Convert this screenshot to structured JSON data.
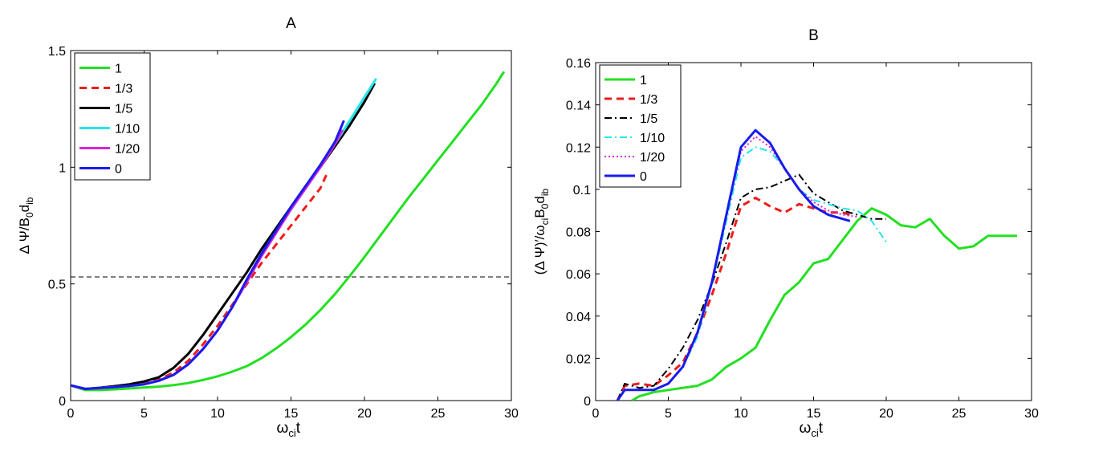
{
  "chart_data": [
    {
      "type": "line",
      "title": "A",
      "xlabel_main": "ω",
      "xlabel_sub": "ci",
      "xlabel_tail": "t",
      "ylabel_text": "Δ Ψ/B",
      "ylabel_sub1": "0",
      "ylabel_mid": "d",
      "ylabel_sub2": "ib",
      "xlim": [
        0,
        30
      ],
      "ylim": [
        0,
        1.5
      ],
      "xticks": [
        0,
        5,
        10,
        15,
        20,
        25,
        30
      ],
      "xtick_labels": [
        "0",
        "5",
        "10",
        "15",
        "20",
        "25",
        "30"
      ],
      "yticks": [
        0,
        0.5,
        1,
        1.5
      ],
      "ytick_labels": [
        "0",
        "0.5",
        "1",
        "1.5"
      ],
      "hline": 0.53,
      "legend_position": "top-left",
      "series": [
        {
          "name": "1",
          "color": "#22e022",
          "dash": "solid",
          "width": 3,
          "x": [
            0,
            1,
            2,
            3,
            4,
            5,
            6,
            7,
            8,
            9,
            10,
            11,
            12,
            13,
            14,
            15,
            16,
            17,
            18,
            19,
            20,
            21,
            22,
            23,
            24,
            25,
            26,
            27,
            28,
            29,
            29.5
          ],
          "y": [
            0.065,
            0.045,
            0.045,
            0.048,
            0.052,
            0.056,
            0.06,
            0.066,
            0.075,
            0.088,
            0.104,
            0.124,
            0.148,
            0.182,
            0.224,
            0.272,
            0.326,
            0.388,
            0.457,
            0.534,
            0.615,
            0.7,
            0.785,
            0.87,
            0.95,
            1.03,
            1.11,
            1.19,
            1.27,
            1.36,
            1.41
          ]
        },
        {
          "name": "1/3",
          "color": "#ee1c1c",
          "dash": "dash",
          "width": 3,
          "x": [
            0,
            1,
            2,
            3,
            4,
            5,
            6,
            7,
            8,
            9,
            10,
            11,
            12,
            13,
            14,
            15,
            16,
            17,
            17.5
          ],
          "y": [
            0.065,
            0.05,
            0.053,
            0.058,
            0.064,
            0.072,
            0.09,
            0.12,
            0.17,
            0.24,
            0.32,
            0.41,
            0.5,
            0.59,
            0.67,
            0.75,
            0.83,
            0.91,
            0.98
          ]
        },
        {
          "name": "1/5",
          "color": "#000000",
          "dash": "solid",
          "width": 3,
          "x": [
            0,
            1,
            2,
            3,
            4,
            5,
            6,
            7,
            8,
            9,
            10,
            11,
            12,
            13,
            14,
            15,
            16,
            17,
            18,
            19,
            20,
            20.7
          ],
          "y": [
            0.065,
            0.05,
            0.055,
            0.062,
            0.07,
            0.082,
            0.1,
            0.14,
            0.2,
            0.28,
            0.37,
            0.46,
            0.55,
            0.65,
            0.74,
            0.83,
            0.92,
            1.0,
            1.09,
            1.18,
            1.28,
            1.36
          ]
        },
        {
          "name": "1/10",
          "color": "#22e6ee",
          "dash": "solid",
          "width": 3,
          "x": [
            0,
            1,
            2,
            3,
            4,
            5,
            6,
            7,
            8,
            9,
            10,
            11,
            12,
            13,
            14,
            15,
            16,
            17,
            18,
            19,
            20,
            20.8
          ],
          "y": [
            0.065,
            0.05,
            0.054,
            0.058,
            0.063,
            0.07,
            0.085,
            0.11,
            0.155,
            0.22,
            0.3,
            0.4,
            0.51,
            0.62,
            0.72,
            0.82,
            0.91,
            1.0,
            1.1,
            1.2,
            1.3,
            1.38
          ]
        },
        {
          "name": "1/20",
          "color": "#dd22dd",
          "dash": "solid",
          "width": 3,
          "x": [
            0,
            1,
            2,
            3,
            4,
            5,
            6,
            7,
            8,
            9,
            10,
            11,
            12,
            13,
            14,
            15,
            16,
            17,
            18,
            18.5
          ],
          "y": [
            0.065,
            0.05,
            0.054,
            0.058,
            0.063,
            0.07,
            0.085,
            0.11,
            0.155,
            0.22,
            0.3,
            0.4,
            0.51,
            0.62,
            0.72,
            0.82,
            0.91,
            1.0,
            1.1,
            1.16
          ]
        },
        {
          "name": "0",
          "color": "#1a1aee",
          "dash": "solid",
          "width": 3,
          "x": [
            0,
            1,
            2,
            3,
            4,
            5,
            6,
            7,
            8,
            9,
            10,
            11,
            12,
            13,
            14,
            15,
            16,
            17,
            18,
            18.6
          ],
          "y": [
            0.065,
            0.05,
            0.054,
            0.058,
            0.063,
            0.07,
            0.085,
            0.11,
            0.155,
            0.22,
            0.3,
            0.4,
            0.52,
            0.63,
            0.73,
            0.83,
            0.92,
            1.01,
            1.11,
            1.2
          ]
        }
      ]
    },
    {
      "type": "line",
      "title": "B",
      "xlabel_main": "ω",
      "xlabel_sub": "ci",
      "xlabel_tail": "t",
      "ylabel_text": "(Δ Ψ)′/ω",
      "ylabel_sub1": "ci",
      "ylabel_mid": "B",
      "ylabel_sub2": "0",
      "ylabel_mid2": "d",
      "ylabel_sub3": "ib",
      "xlim": [
        0,
        30
      ],
      "ylim": [
        0,
        0.16
      ],
      "xticks": [
        0,
        5,
        10,
        15,
        20,
        25,
        30
      ],
      "xtick_labels": [
        "0",
        "5",
        "10",
        "15",
        "20",
        "25",
        "30"
      ],
      "yticks": [
        0,
        0.02,
        0.04,
        0.06,
        0.08,
        0.1,
        0.12,
        0.14,
        0.16
      ],
      "ytick_labels": [
        "0",
        "0.02",
        "0.04",
        "0.06",
        "0.08",
        "0.1",
        "0.12",
        "0.14",
        "0.16"
      ],
      "legend_position": "top-left",
      "series": [
        {
          "name": "1",
          "color": "#22e022",
          "dash": "solid",
          "width": 3,
          "x": [
            2.5,
            3,
            4,
            5,
            6,
            7,
            8,
            9,
            10,
            11,
            12,
            13,
            14,
            15,
            16,
            17,
            18,
            19,
            20,
            21,
            22,
            23,
            24,
            25,
            26,
            27,
            28,
            29
          ],
          "y": [
            0,
            0.002,
            0.004,
            0.005,
            0.006,
            0.007,
            0.01,
            0.016,
            0.02,
            0.025,
            0.038,
            0.05,
            0.056,
            0.065,
            0.067,
            0.076,
            0.085,
            0.091,
            0.088,
            0.083,
            0.082,
            0.086,
            0.078,
            0.072,
            0.073,
            0.078,
            0.078,
            0.078
          ]
        },
        {
          "name": "1/3",
          "color": "#ee1c1c",
          "dash": "dash",
          "width": 3,
          "x": [
            1.5,
            2,
            3,
            4,
            5,
            6,
            7,
            8,
            9,
            10,
            11,
            12,
            13,
            14,
            15,
            16,
            17,
            17.5
          ],
          "y": [
            0.0,
            0.007,
            0.008,
            0.007,
            0.012,
            0.018,
            0.032,
            0.05,
            0.07,
            0.092,
            0.096,
            0.092,
            0.089,
            0.093,
            0.091,
            0.089,
            0.089,
            0.088
          ]
        },
        {
          "name": "1/5",
          "color": "#000000",
          "dash": "dashdot",
          "width": 2,
          "x": [
            1.5,
            2,
            3,
            4,
            5,
            6,
            7,
            8,
            9,
            10,
            11,
            12,
            13,
            14,
            15,
            16,
            17,
            18,
            19,
            20
          ],
          "y": [
            0.0,
            0.008,
            0.006,
            0.007,
            0.015,
            0.025,
            0.038,
            0.055,
            0.075,
            0.096,
            0.1,
            0.101,
            0.104,
            0.107,
            0.098,
            0.094,
            0.09,
            0.088,
            0.086,
            0.086
          ]
        },
        {
          "name": "1/10",
          "color": "#22e6ee",
          "dash": "dashdot",
          "width": 2,
          "x": [
            1.5,
            2,
            3,
            4,
            5,
            6,
            7,
            8,
            9,
            10,
            11,
            12,
            13,
            14,
            15,
            16,
            17,
            18,
            19,
            20
          ],
          "y": [
            0.0,
            0.005,
            0.005,
            0.005,
            0.008,
            0.016,
            0.03,
            0.055,
            0.085,
            0.115,
            0.12,
            0.118,
            0.11,
            0.1,
            0.095,
            0.093,
            0.091,
            0.09,
            0.085,
            0.075
          ]
        },
        {
          "name": "1/20",
          "color": "#dd22dd",
          "dash": "dot",
          "width": 2,
          "x": [
            1.5,
            2,
            3,
            4,
            5,
            6,
            7,
            8,
            9,
            10,
            11,
            12,
            13,
            14,
            15,
            16,
            17,
            18
          ],
          "y": [
            0.0,
            0.005,
            0.005,
            0.005,
            0.008,
            0.016,
            0.032,
            0.056,
            0.088,
            0.118,
            0.125,
            0.12,
            0.11,
            0.1,
            0.094,
            0.09,
            0.088,
            0.087
          ]
        },
        {
          "name": "0",
          "color": "#1a1aee",
          "dash": "solid",
          "width": 3,
          "x": [
            1.5,
            2,
            3,
            4,
            5,
            6,
            7,
            8,
            9,
            10,
            11,
            12,
            13,
            14,
            15,
            16,
            17,
            17.5
          ],
          "y": [
            0.0,
            0.005,
            0.005,
            0.005,
            0.008,
            0.016,
            0.032,
            0.056,
            0.088,
            0.12,
            0.128,
            0.122,
            0.11,
            0.1,
            0.092,
            0.088,
            0.086,
            0.085
          ]
        }
      ]
    }
  ]
}
